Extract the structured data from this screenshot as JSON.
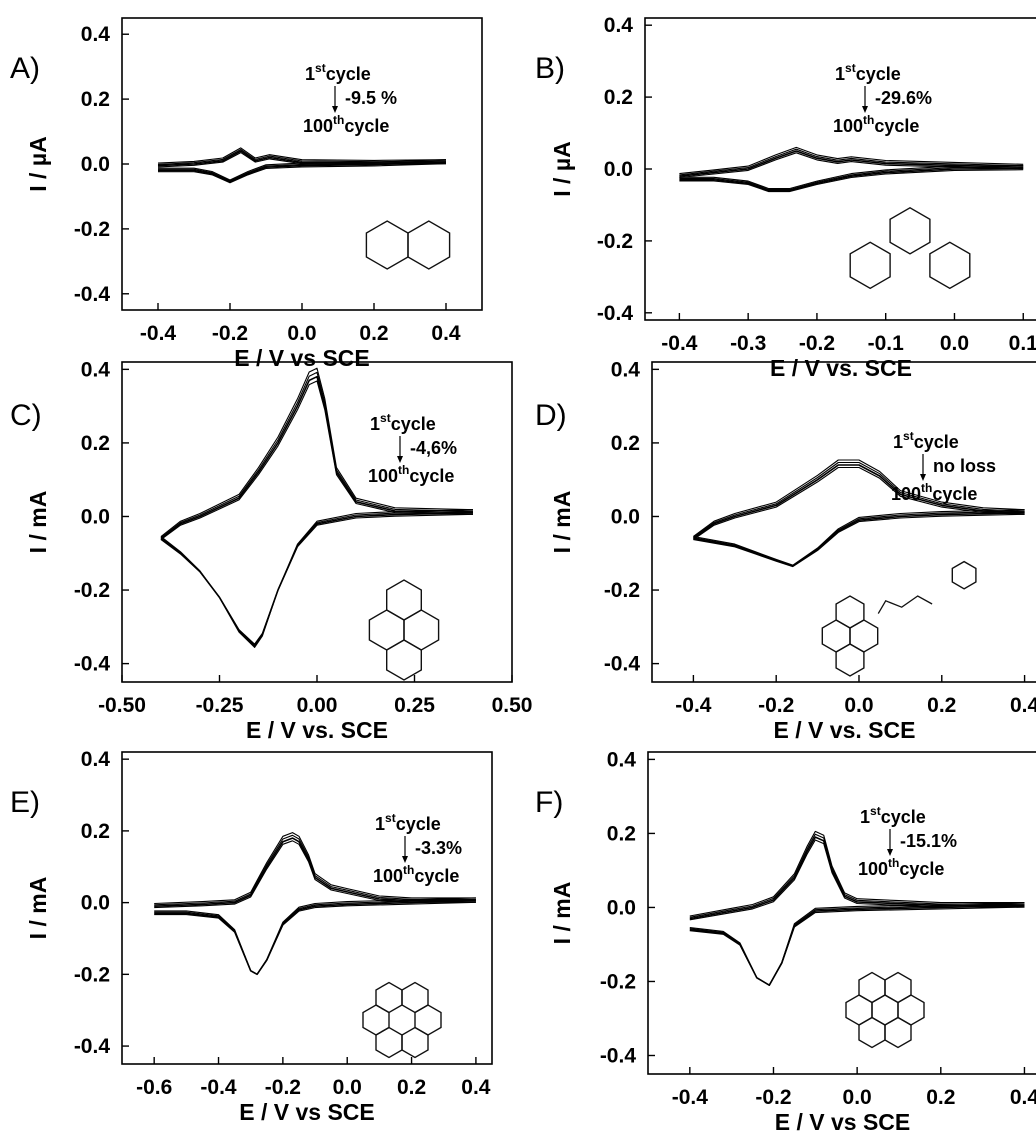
{
  "chart_data": [
    {
      "type": "line",
      "panel_label": "A)",
      "xlabel": "E / V vs SCE",
      "ylabel": "I / µA",
      "xlim": [
        -0.5,
        0.5
      ],
      "ylim": [
        -0.45,
        0.45
      ],
      "xticks": [
        "-0.4",
        "-0.2",
        "0.0",
        "0.2",
        "0.4"
      ],
      "xtick_values": [
        -0.4,
        -0.2,
        0.0,
        0.2,
        0.4
      ],
      "yticks": [
        "0.4",
        "0.2",
        "0.0",
        "-0.2",
        "-0.4"
      ],
      "ytick_values": [
        0.4,
        0.2,
        0.0,
        -0.2,
        -0.4
      ],
      "annotation": {
        "first": "1",
        "first_sup": "st",
        "first_word": "cycle",
        "change": "-9.5 %",
        "last": "100",
        "last_sup": "th",
        "last_word": "cycle"
      },
      "molecule": "naphthalene",
      "series": [
        {
          "x": [
            -0.4,
            -0.3,
            -0.22,
            -0.17,
            -0.13,
            -0.09,
            0.0,
            0.2,
            0.4
          ],
          "y": [
            -0.005,
            0.0,
            0.01,
            0.04,
            0.01,
            0.02,
            0.005,
            0.003,
            0.005
          ]
        },
        {
          "x": [
            0.4,
            0.2,
            0.0,
            -0.1,
            -0.15,
            -0.2,
            -0.25,
            -0.3,
            -0.4
          ],
          "y": [
            0.005,
            -0.002,
            -0.005,
            -0.01,
            -0.03,
            -0.055,
            -0.03,
            -0.02,
            -0.02
          ]
        }
      ]
    },
    {
      "type": "line",
      "panel_label": "B)",
      "xlabel": "E / V vs. SCE",
      "ylabel": "I / µA",
      "xlim": [
        -0.45,
        0.12
      ],
      "ylim": [
        -0.42,
        0.42
      ],
      "xticks": [
        "-0.4",
        "-0.3",
        "-0.2",
        "-0.1",
        "0.0",
        "0.1"
      ],
      "xtick_values": [
        -0.4,
        -0.3,
        -0.2,
        -0.1,
        0.0,
        0.1
      ],
      "yticks": [
        "0.4",
        "0.2",
        "0.0",
        "-0.2",
        "-0.4"
      ],
      "ytick_values": [
        0.4,
        0.2,
        0.0,
        -0.2,
        -0.4
      ],
      "annotation": {
        "first": "1",
        "first_sup": "st",
        "first_word": "cycle",
        "change": "-29.6%",
        "last": "100",
        "last_sup": "th",
        "last_word": "cycle"
      },
      "molecule": "phenanthrene",
      "series": [
        {
          "x": [
            -0.4,
            -0.35,
            -0.3,
            -0.26,
            -0.23,
            -0.2,
            -0.17,
            -0.15,
            -0.1,
            0.0,
            0.1
          ],
          "y": [
            -0.02,
            -0.01,
            0.0,
            0.03,
            0.05,
            0.03,
            0.02,
            0.025,
            0.015,
            0.01,
            0.005
          ]
        },
        {
          "x": [
            0.1,
            0.0,
            -0.1,
            -0.15,
            -0.2,
            -0.24,
            -0.27,
            -0.3,
            -0.35,
            -0.4
          ],
          "y": [
            0.002,
            0.0,
            -0.01,
            -0.02,
            -0.04,
            -0.06,
            -0.06,
            -0.04,
            -0.03,
            -0.03
          ]
        }
      ]
    },
    {
      "type": "line",
      "panel_label": "C)",
      "xlabel": "E / V vs. SCE",
      "ylabel": "I / mA",
      "xlim": [
        -0.5,
        0.5
      ],
      "ylim": [
        -0.45,
        0.42
      ],
      "xticks": [
        "-0.50",
        "-0.25",
        "0.00",
        "0.25",
        "0.50"
      ],
      "xtick_values": [
        -0.5,
        -0.25,
        0.0,
        0.25,
        0.5
      ],
      "yticks": [
        "0.4",
        "0.2",
        "0.0",
        "-0.2",
        "-0.4"
      ],
      "ytick_values": [
        0.4,
        0.2,
        0.0,
        -0.2,
        -0.4
      ],
      "annotation": {
        "first": "1",
        "first_sup": "st",
        "first_word": "cycle",
        "change": "-4,6%",
        "last": "100",
        "last_sup": "th",
        "last_word": "cycle"
      },
      "molecule": "pyrene",
      "series": [
        {
          "x": [
            -0.4,
            -0.35,
            -0.3,
            -0.2,
            -0.15,
            -0.1,
            -0.05,
            -0.02,
            0.0,
            0.02,
            0.05,
            0.1,
            0.2,
            0.4
          ],
          "y": [
            -0.06,
            -0.02,
            0.0,
            0.05,
            0.12,
            0.2,
            0.3,
            0.37,
            0.38,
            0.3,
            0.12,
            0.04,
            0.015,
            0.01
          ]
        },
        {
          "x": [
            0.4,
            0.2,
            0.1,
            0.0,
            -0.05,
            -0.1,
            -0.14,
            -0.16,
            -0.2,
            -0.25,
            -0.3,
            -0.35,
            -0.4
          ],
          "y": [
            0.01,
            0.005,
            0.0,
            -0.02,
            -0.08,
            -0.2,
            -0.32,
            -0.35,
            -0.31,
            -0.22,
            -0.15,
            -0.1,
            -0.06
          ]
        }
      ]
    },
    {
      "type": "line",
      "panel_label": "D)",
      "xlabel": "E / V vs. SCE",
      "ylabel": "I / mA",
      "xlim": [
        -0.5,
        0.43
      ],
      "ylim": [
        -0.45,
        0.42
      ],
      "xticks": [
        "-0.4",
        "-0.2",
        "0.0",
        "0.2",
        "0.4"
      ],
      "xtick_values": [
        -0.4,
        -0.2,
        0.0,
        0.2,
        0.4
      ],
      "yticks": [
        "0.4",
        "0.2",
        "0.0",
        "-0.2",
        "-0.4"
      ],
      "ytick_values": [
        0.4,
        0.2,
        0.0,
        -0.2,
        -0.4
      ],
      "annotation": {
        "first": "1",
        "first_sup": "st",
        "first_word": "cycle",
        "change": "no loss",
        "last": "100",
        "last_sup": "th",
        "last_word": "cycle"
      },
      "molecule": "pyrene-butyric acid N-hydroxysuccinimide ester",
      "series": [
        {
          "x": [
            -0.4,
            -0.35,
            -0.3,
            -0.2,
            -0.1,
            -0.05,
            0.0,
            0.05,
            0.1,
            0.2,
            0.3,
            0.4
          ],
          "y": [
            -0.06,
            -0.02,
            0.0,
            0.03,
            0.1,
            0.14,
            0.14,
            0.11,
            0.06,
            0.03,
            0.015,
            0.01
          ]
        },
        {
          "x": [
            0.4,
            0.2,
            0.1,
            0.0,
            -0.05,
            -0.1,
            -0.16,
            -0.2,
            -0.25,
            -0.3,
            -0.35,
            -0.4
          ],
          "y": [
            0.01,
            0.005,
            0.0,
            -0.01,
            -0.04,
            -0.09,
            -0.135,
            -0.12,
            -0.1,
            -0.08,
            -0.07,
            -0.06
          ]
        }
      ]
    },
    {
      "type": "line",
      "panel_label": "E)",
      "xlabel": "E / V vs SCE",
      "ylabel": "I / mA",
      "xlim": [
        -0.7,
        0.45
      ],
      "ylim": [
        -0.45,
        0.42
      ],
      "xticks": [
        "-0.6",
        "-0.4",
        "-0.2",
        "0.0",
        "0.2",
        "0.4"
      ],
      "xtick_values": [
        -0.6,
        -0.4,
        -0.2,
        0.0,
        0.2,
        0.4
      ],
      "yticks": [
        "0.4",
        "0.2",
        "0.0",
        "-0.2",
        "-0.4"
      ],
      "ytick_values": [
        0.4,
        0.2,
        0.0,
        -0.2,
        -0.4
      ],
      "annotation": {
        "first": "1",
        "first_sup": "st",
        "first_word": "cycle",
        "change": "-3.3%",
        "last": "100",
        "last_sup": "th",
        "last_word": "cycle"
      },
      "molecule": "perylene",
      "series": [
        {
          "x": [
            -0.6,
            -0.45,
            -0.35,
            -0.3,
            -0.25,
            -0.2,
            -0.17,
            -0.15,
            -0.12,
            -0.1,
            -0.05,
            0.0,
            0.1,
            0.2,
            0.4
          ],
          "y": [
            -0.01,
            -0.005,
            0.0,
            0.02,
            0.1,
            0.17,
            0.18,
            0.17,
            0.12,
            0.07,
            0.04,
            0.03,
            0.01,
            0.005,
            0.005
          ]
        },
        {
          "x": [
            0.4,
            0.2,
            0.0,
            -0.1,
            -0.15,
            -0.2,
            -0.25,
            -0.28,
            -0.3,
            -0.35,
            -0.4,
            -0.5,
            -0.6
          ],
          "y": [
            0.005,
            0.0,
            -0.005,
            -0.01,
            -0.02,
            -0.06,
            -0.16,
            -0.2,
            -0.19,
            -0.08,
            -0.04,
            -0.03,
            -0.03
          ]
        }
      ]
    },
    {
      "type": "line",
      "panel_label": "F)",
      "xlabel": "E / V vs SCE",
      "ylabel": "I / mA",
      "xlim": [
        -0.5,
        0.43
      ],
      "ylim": [
        -0.45,
        0.42
      ],
      "xticks": [
        "-0.4",
        "-0.2",
        "0.0",
        "0.2",
        "0.4"
      ],
      "xtick_values": [
        -0.4,
        -0.2,
        0.0,
        0.2,
        0.4
      ],
      "yticks": [
        "0.4",
        "0.2",
        "0.0",
        "-0.2",
        "-0.4"
      ],
      "ytick_values": [
        0.4,
        0.2,
        0.0,
        -0.2,
        -0.4
      ],
      "annotation": {
        "first": "1",
        "first_sup": "st",
        "first_word": "cycle",
        "change": "-15.1%",
        "last": "100",
        "last_sup": "th",
        "last_word": "cycle"
      },
      "molecule": "coronene",
      "series": [
        {
          "x": [
            -0.4,
            -0.3,
            -0.25,
            -0.2,
            -0.15,
            -0.12,
            -0.1,
            -0.08,
            -0.06,
            -0.03,
            0.0,
            0.1,
            0.2,
            0.4
          ],
          "y": [
            -0.03,
            -0.01,
            0.0,
            0.02,
            0.08,
            0.15,
            0.19,
            0.18,
            0.1,
            0.03,
            0.015,
            0.01,
            0.005,
            0.005
          ]
        },
        {
          "x": [
            0.4,
            0.2,
            0.0,
            -0.1,
            -0.15,
            -0.18,
            -0.21,
            -0.24,
            -0.28,
            -0.32,
            -0.4
          ],
          "y": [
            0.005,
            0.0,
            -0.005,
            -0.01,
            -0.05,
            -0.15,
            -0.21,
            -0.19,
            -0.1,
            -0.07,
            -0.06
          ]
        }
      ]
    }
  ]
}
